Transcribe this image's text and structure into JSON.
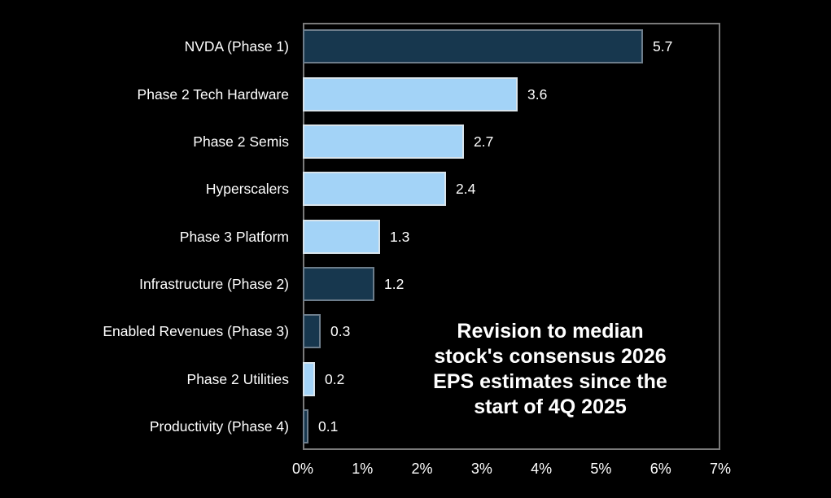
{
  "chart_data": {
    "type": "bar",
    "orientation": "horizontal",
    "title": "",
    "xlabel": "",
    "ylabel": "",
    "categories": [
      "NVDA (Phase 1)",
      "Phase 2 Tech Hardware",
      "Phase 2 Semis",
      "Hyperscalers",
      "Phase 3 Platform",
      "Infrastructure (Phase 2)",
      "Enabled Revenues (Phase 3)",
      "Phase 2 Utilities",
      "Productivity (Phase 4)"
    ],
    "values": [
      5.7,
      3.6,
      2.7,
      2.4,
      1.3,
      1.2,
      0.3,
      0.2,
      0.1
    ],
    "value_labels": [
      "5.7",
      "3.6",
      "2.7",
      "2.4",
      "1.3",
      "1.2",
      "0.3",
      "0.2",
      "0.1"
    ],
    "bar_styles": [
      "dark",
      "light",
      "light",
      "light",
      "light",
      "dark",
      "dark",
      "light",
      "dark"
    ],
    "x_ticks": [
      "0%",
      "1%",
      "2%",
      "3%",
      "4%",
      "5%",
      "6%",
      "7%"
    ],
    "xlim": [
      0,
      7
    ],
    "grid": false,
    "legend": "none",
    "annotation_lines": [
      "Revision to median",
      "stock's consensus 2026",
      "EPS estimates since the",
      "start of 4Q 2025"
    ],
    "colors": {
      "background": "#000000",
      "plot_border": "#7a7a7a",
      "dark_bar_fill": "#17374e",
      "dark_bar_border": "#6d7d8b",
      "light_bar_fill": "#a3d3f7",
      "light_bar_border": "#d8e4ec",
      "text": "#ffffff"
    }
  }
}
